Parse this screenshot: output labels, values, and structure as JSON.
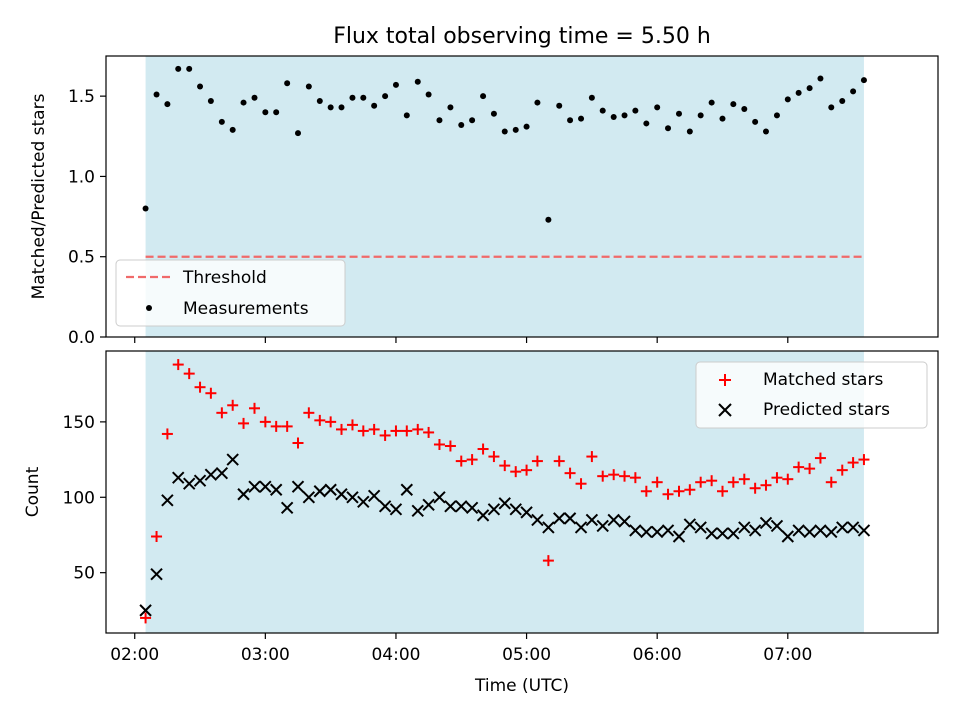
{
  "figure": {
    "title": "Flux total observing time = 5.50 h",
    "xlabel": "Time (UTC)"
  },
  "chart_data": [
    {
      "type": "scatter",
      "panel": "top",
      "ylabel": "Matched/Predicted stars",
      "x_axis": "hours (UTC)",
      "xlim": [
        1.78,
        8.15
      ],
      "ylim": [
        0,
        1.75
      ],
      "yticks": [
        0.0,
        0.5,
        1.0,
        1.5
      ],
      "ytick_labels": [
        "0.0",
        "0.5",
        "1.0",
        "1.5"
      ],
      "observing_window": [
        2.083,
        7.583
      ],
      "shade_color": "#add8e6",
      "legend_position": "lower left",
      "threshold": {
        "name": "Threshold",
        "y": 0.5,
        "color": "#f06a6a",
        "style": "dashed"
      },
      "series": [
        {
          "name": "Measurements",
          "marker": "dot",
          "color": "#000000",
          "x": [
            2.083,
            2.167,
            2.25,
            2.333,
            2.417,
            2.5,
            2.583,
            2.667,
            2.75,
            2.833,
            2.917,
            3.0,
            3.083,
            3.167,
            3.25,
            3.333,
            3.417,
            3.5,
            3.583,
            3.667,
            3.75,
            3.833,
            3.917,
            4.0,
            4.083,
            4.167,
            4.25,
            4.333,
            4.417,
            4.5,
            4.583,
            4.667,
            4.75,
            4.833,
            4.917,
            5.0,
            5.083,
            5.167,
            5.25,
            5.333,
            5.417,
            5.5,
            5.583,
            5.667,
            5.75,
            5.833,
            5.917,
            6.0,
            6.083,
            6.167,
            6.25,
            6.333,
            6.417,
            6.5,
            6.583,
            6.667,
            6.75,
            6.833,
            6.917,
            7.0,
            7.083,
            7.167,
            7.25,
            7.333,
            7.417,
            7.5,
            7.583
          ],
          "y": [
            0.8,
            1.51,
            1.45,
            1.67,
            1.67,
            1.56,
            1.47,
            1.34,
            1.29,
            1.46,
            1.49,
            1.4,
            1.4,
            1.58,
            1.27,
            1.56,
            1.47,
            1.43,
            1.43,
            1.49,
            1.49,
            1.44,
            1.5,
            1.57,
            1.38,
            1.59,
            1.51,
            1.35,
            1.43,
            1.32,
            1.35,
            1.5,
            1.39,
            1.28,
            1.29,
            1.31,
            1.46,
            0.73,
            1.44,
            1.35,
            1.36,
            1.49,
            1.41,
            1.37,
            1.38,
            1.41,
            1.33,
            1.43,
            1.3,
            1.39,
            1.28,
            1.38,
            1.46,
            1.36,
            1.45,
            1.42,
            1.34,
            1.28,
            1.38,
            1.48,
            1.52,
            1.55,
            1.61,
            1.43,
            1.47,
            1.53,
            1.6
          ]
        }
      ]
    },
    {
      "type": "scatter",
      "panel": "bottom",
      "ylabel": "Count",
      "x_axis": "hours (UTC)",
      "xlim": [
        1.78,
        8.15
      ],
      "ylim": [
        10,
        197
      ],
      "yticks": [
        50,
        100,
        150
      ],
      "ytick_labels": [
        "50",
        "100",
        "150"
      ],
      "xticks": [
        2,
        3,
        4,
        5,
        6,
        7
      ],
      "xtick_labels": [
        "02:00",
        "03:00",
        "04:00",
        "05:00",
        "06:00",
        "07:00"
      ],
      "observing_window": [
        2.083,
        7.583
      ],
      "shade_color": "#add8e6",
      "legend_position": "upper right",
      "x": [
        2.083,
        2.167,
        2.25,
        2.333,
        2.417,
        2.5,
        2.583,
        2.667,
        2.75,
        2.833,
        2.917,
        3.0,
        3.083,
        3.167,
        3.25,
        3.333,
        3.417,
        3.5,
        3.583,
        3.667,
        3.75,
        3.833,
        3.917,
        4.0,
        4.083,
        4.167,
        4.25,
        4.333,
        4.417,
        4.5,
        4.583,
        4.667,
        4.75,
        4.833,
        4.917,
        5.0,
        5.083,
        5.167,
        5.25,
        5.333,
        5.417,
        5.5,
        5.583,
        5.667,
        5.75,
        5.833,
        5.917,
        6.0,
        6.083,
        6.167,
        6.25,
        6.333,
        6.417,
        6.5,
        6.583,
        6.667,
        6.75,
        6.833,
        6.917,
        7.0,
        7.083,
        7.167,
        7.25,
        7.333,
        7.417,
        7.5,
        7.583
      ],
      "series": [
        {
          "name": "Matched stars",
          "marker": "plus",
          "color": "#ff0000",
          "values": [
            20,
            74,
            142,
            188,
            182,
            173,
            169,
            156,
            161,
            149,
            159,
            150,
            147,
            147,
            136,
            156,
            151,
            150,
            145,
            148,
            144,
            145,
            141,
            144,
            144,
            145,
            143,
            135,
            134,
            124,
            125,
            132,
            127,
            121,
            117,
            118,
            124,
            58,
            124,
            116,
            109,
            127,
            114,
            115,
            114,
            113,
            104,
            110,
            102,
            104,
            105,
            110,
            111,
            104,
            110,
            112,
            106,
            108,
            113,
            112,
            120,
            119,
            126,
            110,
            118,
            123,
            125
          ]
        },
        {
          "name": "Predicted stars",
          "marker": "x",
          "color": "#000000",
          "values": [
            25,
            49,
            98,
            113,
            109,
            111,
            115,
            116,
            125,
            102,
            107,
            107,
            105,
            93,
            107,
            100,
            104,
            105,
            102,
            100,
            97,
            101,
            94,
            92,
            105,
            91,
            95,
            100,
            94,
            94,
            93,
            88,
            92,
            96,
            92,
            90,
            85,
            80,
            86,
            86,
            80,
            85,
            81,
            85,
            84,
            78,
            77,
            77,
            78,
            74,
            82,
            80,
            76,
            76,
            76,
            80,
            78,
            83,
            81,
            74,
            78,
            77,
            78,
            77,
            80,
            80,
            78
          ]
        }
      ]
    }
  ]
}
